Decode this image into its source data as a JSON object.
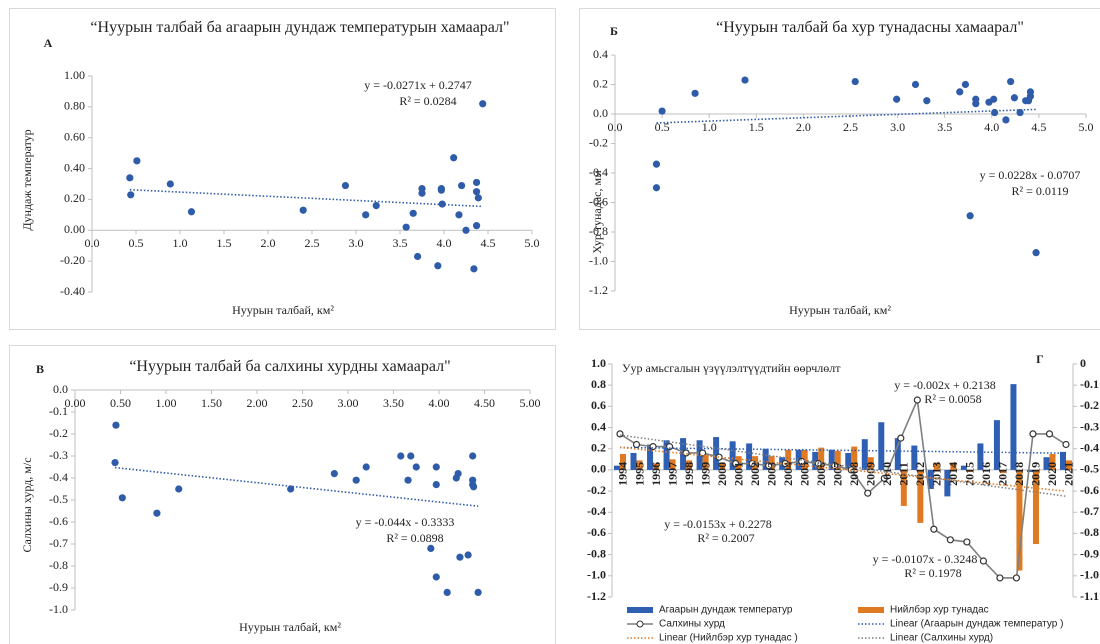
{
  "chart_data": [
    {
      "type": "scatter",
      "panel_label": "А",
      "title": "“Нуурын талбай ба агаарын дундаж температурын хамаарал\"",
      "x_label": "Нуурын талбай, км²",
      "y_label": "Дундаж температур",
      "x": [
        0.43,
        0.44,
        0.51,
        0.89,
        1.13,
        2.4,
        2.88,
        3.11,
        3.23,
        3.57,
        3.65,
        3.7,
        3.75,
        3.75,
        3.93,
        3.97,
        3.97,
        3.98,
        4.11,
        4.17,
        4.2,
        4.25,
        4.34,
        4.37,
        4.37,
        4.39,
        4.37,
        4.44
      ],
      "y": [
        0.34,
        0.23,
        0.45,
        0.3,
        0.12,
        0.13,
        0.29,
        0.1,
        0.16,
        0.02,
        0.11,
        -0.17,
        0.27,
        0.24,
        -0.23,
        0.27,
        0.26,
        0.17,
        0.47,
        0.1,
        0.29,
        0.0,
        -0.25,
        0.31,
        0.25,
        0.21,
        0.03,
        0.82
      ],
      "color": "#2f5ca8",
      "xlim": [
        0,
        5
      ],
      "xticks": [
        {
          "value": 0,
          "label": "0.0"
        },
        0.5,
        {
          "value": 1,
          "label": "1.0"
        },
        1.5,
        {
          "value": 2,
          "label": "2.0"
        },
        2.5,
        {
          "value": 3,
          "label": "3.0"
        },
        3.5,
        {
          "value": 4,
          "label": "4.0"
        },
        4.5,
        {
          "value": 5,
          "label": "5.0"
        }
      ],
      "ylim": [
        -0.4,
        1
      ],
      "yticks": [
        {
          "value": -0.4,
          "label": "-0.40"
        },
        {
          "value": -0.2,
          "label": "-0.20"
        },
        {
          "value": 0,
          "label": "0.00"
        },
        {
          "value": 0.2,
          "label": "0.20"
        },
        {
          "value": 0.4,
          "label": "0.40"
        },
        {
          "value": 0.6,
          "label": "0.60"
        },
        {
          "value": 0.8,
          "label": "0.80"
        },
        {
          "value": 1,
          "label": "1.00"
        }
      ],
      "trendline": {
        "slope": -0.0271,
        "intercept": 0.2747,
        "color": "#2f5ca8"
      },
      "annotation": [
        "y = -0.0271x + 0.2747",
        "R² = 0.0284"
      ]
    },
    {
      "type": "scatter",
      "panel_label": "Б",
      "title": "“Нуурын талбай ба хур тунадасны хамаарал\"",
      "x_label": "Нуурын талбай, км²",
      "y_label": "Хур тунадас, мм",
      "x": [
        0.44,
        0.44,
        0.5,
        0.85,
        1.38,
        2.55,
        2.99,
        3.19,
        3.31,
        3.66,
        3.72,
        3.77,
        3.83,
        3.83,
        3.97,
        4.02,
        4.03,
        4.15,
        4.2,
        4.24,
        4.3,
        4.36,
        4.39,
        4.41,
        4.41,
        4.47
      ],
      "y": [
        -0.34,
        -0.5,
        0.02,
        0.14,
        0.23,
        0.22,
        0.1,
        0.2,
        0.09,
        0.15,
        0.2,
        -0.69,
        0.1,
        0.07,
        0.08,
        0.1,
        0.01,
        -0.04,
        0.22,
        0.11,
        0.01,
        0.09,
        0.09,
        0.15,
        0.12,
        -0.94
      ],
      "color": "#2f5ca8",
      "xlim": [
        0,
        5
      ],
      "xticks": [
        {
          "value": 0,
          "label": "0.0"
        },
        0.5,
        {
          "value": 1,
          "label": "1.0"
        },
        1.5,
        {
          "value": 2,
          "label": "2.0"
        },
        2.5,
        {
          "value": 3,
          "label": "3.0"
        },
        3.5,
        {
          "value": 4,
          "label": "4.0"
        },
        4.5,
        {
          "value": 5,
          "label": "5.0"
        }
      ],
      "ylim": [
        -1.2,
        0.4
      ],
      "yticks": [
        -1.2,
        {
          "value": -1,
          "label": "-1.0"
        },
        -0.8,
        -0.6,
        -0.4,
        -0.2,
        {
          "value": 0,
          "label": "0.0"
        },
        0.2,
        0.4
      ],
      "trendline": {
        "slope": 0.0228,
        "intercept": -0.0707,
        "color": "#2f5ca8"
      },
      "annotation": [
        "y = 0.0228x - 0.0707",
        "R² = 0.0119"
      ]
    },
    {
      "type": "scatter",
      "panel_label": "В",
      "title": "“Нуурын талбай ба салхины хурдны хамаарал\"",
      "x_label": "Нуурын талбай, км²",
      "y_label": "Салхины хурд, м/с",
      "x": [
        0.45,
        0.44,
        0.52,
        0.9,
        1.14,
        2.37,
        2.85,
        3.09,
        3.2,
        3.58,
        3.66,
        3.69,
        3.75,
        3.91,
        3.97,
        3.97,
        3.97,
        4.09,
        4.19,
        4.21,
        4.23,
        4.32,
        4.37,
        4.37,
        4.37,
        4.38,
        4.43
      ],
      "y": [
        -0.16,
        -0.33,
        -0.49,
        -0.56,
        -0.45,
        -0.45,
        -0.38,
        -0.41,
        -0.35,
        -0.3,
        -0.41,
        -0.3,
        -0.35,
        -0.72,
        -0.35,
        -0.43,
        -0.85,
        -0.92,
        -0.4,
        -0.38,
        -0.76,
        -0.75,
        -0.3,
        -0.41,
        -0.43,
        -0.44,
        -0.92
      ],
      "color": "#2f5ca8",
      "xlim": [
        0,
        5
      ],
      "xticks": [
        {
          "value": 0,
          "label": "0.00"
        },
        {
          "value": 0.5,
          "label": "0.50"
        },
        {
          "value": 1,
          "label": "1.00"
        },
        {
          "value": 1.5,
          "label": "1.50"
        },
        {
          "value": 2,
          "label": "2.00"
        },
        {
          "value": 2.5,
          "label": "2.50"
        },
        {
          "value": 3,
          "label": "3.00"
        },
        {
          "value": 3.5,
          "label": "3.50"
        },
        {
          "value": 4,
          "label": "4.00"
        },
        {
          "value": 4.5,
          "label": "4.50"
        },
        {
          "value": 5,
          "label": "5.00"
        }
      ],
      "ylim": [
        -1,
        0
      ],
      "yticks": [
        {
          "value": -1,
          "label": "-1.0"
        },
        -0.9,
        -0.8,
        -0.7,
        -0.6,
        -0.5,
        -0.4,
        -0.3,
        -0.2,
        -0.1,
        {
          "value": 0,
          "label": "0.0"
        }
      ],
      "trendline": {
        "slope": -0.044,
        "intercept": -0.3333,
        "color": "#2f5ca8"
      },
      "annotation": [
        "y = -0.044x - 0.3333",
        "R² = 0.0898"
      ]
    },
    {
      "type": "combo",
      "panel_label": "Г",
      "title": "Уур амьсгалын үзүүлэлтүүдтийн өөрчлөлт",
      "categories": [
        "1994",
        "1995",
        "1996",
        "1997",
        "1998",
        "1999",
        "2000",
        "2001",
        "2002",
        "2003",
        "2004",
        "2005",
        "2006",
        "2007",
        "2008",
        "2009",
        "2010",
        "2011",
        "2012",
        "2013",
        "2014",
        "2015",
        "2016",
        "2017",
        "2018",
        "2019",
        "2020",
        "2021"
      ],
      "series": [
        {
          "name": "Агаарын дундаж температур",
          "type": "bar",
          "color": "#2f5fb3",
          "values": [
            0.04,
            0.16,
            0.24,
            0.28,
            0.3,
            0.28,
            0.31,
            0.27,
            0.25,
            0.2,
            0.12,
            0.19,
            0.17,
            0.19,
            0.16,
            0.29,
            0.45,
            0.3,
            0.23,
            -0.18,
            -0.25,
            0.04,
            0.25,
            0.47,
            0.81,
            -0.02,
            0.12,
            0.17
          ]
        },
        {
          "name": "Нийлбэр хур тунадас",
          "type": "bar",
          "color": "#e07a22",
          "values": [
            0.15,
            0.09,
            0.06,
            0.1,
            0.09,
            0.14,
            0.07,
            0.13,
            0.13,
            0.13,
            0.19,
            0.19,
            0.21,
            0.18,
            0.22,
            0.12,
            0.0,
            -0.34,
            -0.5,
            0.07,
            0.07,
            -0.02,
            0.0,
            -0.03,
            -0.95,
            -0.7,
            0.15,
            0.09
          ]
        },
        {
          "name": "Салхины хурд",
          "type": "line",
          "axis": "y2",
          "color": "#7f7f7f",
          "values": [
            -0.33,
            -0.38,
            -0.39,
            -0.39,
            -0.42,
            -0.42,
            -0.44,
            -0.47,
            -0.47,
            -0.48,
            -0.47,
            -0.46,
            -0.47,
            -0.48,
            -0.5,
            -0.61,
            -0.54,
            -0.35,
            -0.17,
            -0.78,
            -0.83,
            -0.84,
            -0.93,
            -1.01,
            -1.01,
            -0.33,
            -0.33,
            -0.38
          ]
        }
      ],
      "trendlines": [
        {
          "name": "Linear (Агаарын дундаж температур )",
          "series": 0,
          "slope": -0.002,
          "intercept": 0.2138,
          "color": "#2f5fb3",
          "annotation": [
            "y = -0.002x + 0.2138",
            "R² = 0.0058"
          ]
        },
        {
          "name": "Linear (Нийлбэр хур тунадас )",
          "series": 1,
          "slope": -0.0153,
          "intercept": 0.2278,
          "color": "#e07a22",
          "annotation": [
            "y = -0.0153x + 0.2278",
            "R² = 0.2007"
          ]
        },
        {
          "name": "Linear (Салхины хурд)",
          "series": 2,
          "axis": "y2",
          "slope": -0.0107,
          "intercept": -0.3248,
          "color": "#7f7f7f",
          "annotation": [
            "y = -0.0107x - 0.3248",
            "R² = 0.1978"
          ]
        }
      ],
      "ylim": [
        -1.2,
        1
      ],
      "yticks": [
        -1.2,
        {
          "value": -1,
          "label": "-1.0"
        },
        -0.8,
        -0.6,
        -0.4,
        -0.2,
        {
          "value": 0,
          "label": "0.0"
        },
        0.2,
        0.4,
        0.6,
        0.8,
        {
          "value": 1,
          "label": "1.0"
        }
      ],
      "y2lim": [
        -1.1,
        0
      ],
      "y2ticks": [
        -1.1,
        {
          "value": -1,
          "label": "-1.0"
        },
        -0.9,
        -0.8,
        -0.7,
        -0.6,
        -0.5,
        -0.4,
        -0.3,
        -0.2,
        -0.1,
        0
      ]
    }
  ]
}
